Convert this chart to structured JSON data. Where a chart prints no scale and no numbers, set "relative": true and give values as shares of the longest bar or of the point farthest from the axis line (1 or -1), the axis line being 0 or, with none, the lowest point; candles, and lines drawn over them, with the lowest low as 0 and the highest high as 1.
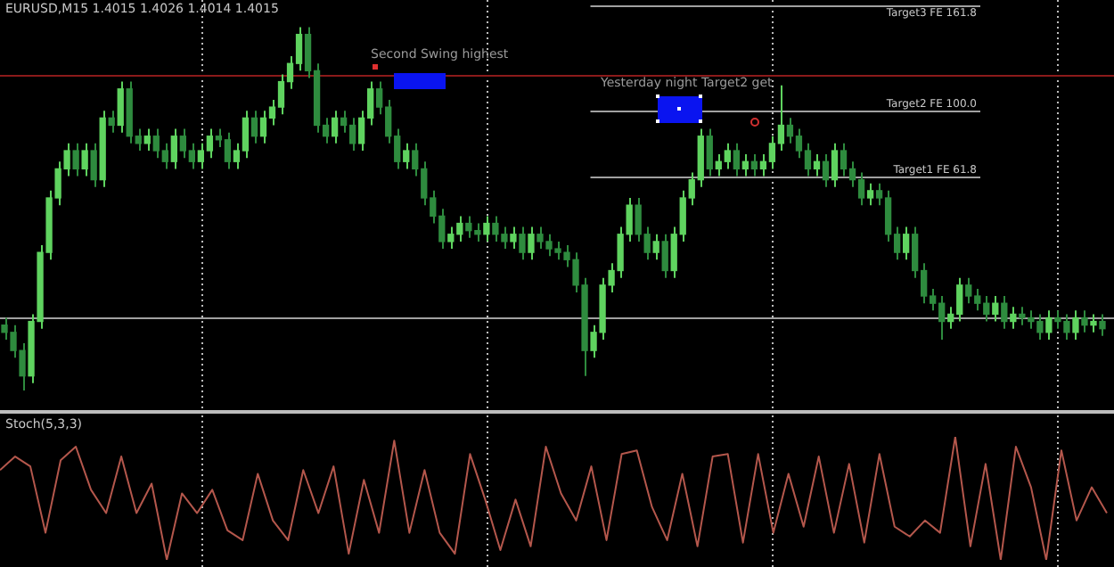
{
  "chart_data": [
    {
      "type": "candlestick",
      "title": "EURUSD,M15 1.4015 1.4026 1.4014 1.4015",
      "relative": true,
      "tick_labels": false,
      "annotations": [
        "Second Swing highest",
        "Yesterday night Target2 get"
      ],
      "colors": [
        "#2e8b3e",
        "#2e8b3e",
        "#2e8b3e",
        "#5fd35f",
        "#5fd35f",
        "#5fd35f",
        "#5fd35f",
        "#5fd35f",
        "#2e8b3e",
        "#5fd35f",
        "#2e8b3e",
        "#5fd35f",
        "#2e8b3e",
        "#5fd35f",
        "#2e8b3e",
        "#2e8b3e",
        "#5fd35f",
        "#2e8b3e",
        "#2e8b3e",
        "#5fd35f",
        "#2e8b3e",
        "#2e8b3e",
        "#5fd35f",
        "#5fd35f",
        "#2e8b3e",
        "#2e8b3e",
        "#5fd35f",
        "#5fd35f",
        "#2e8b3e",
        "#5fd35f",
        "#5fd35f",
        "#5fd35f",
        "#5fd35f",
        "#5fd35f",
        "#2e8b3e",
        "#2e8b3e",
        "#2e8b3e",
        "#5fd35f",
        "#2e8b3e",
        "#2e8b3e",
        "#5fd35f",
        "#5fd35f",
        "#2e8b3e",
        "#2e8b3e",
        "#2e8b3e",
        "#5fd35f",
        "#2e8b3e",
        "#2e8b3e",
        "#2e8b3e",
        "#2e8b3e",
        "#5fd35f",
        "#5fd35f",
        "#2e8b3e",
        "#2e8b3e",
        "#5fd35f",
        "#2e8b3e",
        "#2e8b3e",
        "#5fd35f",
        "#2e8b3e",
        "#5fd35f",
        "#2e8b3e",
        "#2e8b3e",
        "#2e8b3e",
        "#2e8b3e",
        "#2e8b3e",
        "#2e8b3e",
        "#5fd35f",
        "#5fd35f",
        "#5fd35f",
        "#5fd35f",
        "#5fd35f",
        "#2e8b3e",
        "#2e8b3e",
        "#5fd35f",
        "#2e8b3e",
        "#5fd35f",
        "#5fd35f",
        "#5fd35f",
        "#5fd35f",
        "#2e8b3e",
        "#5fd35f",
        "#5fd35f",
        "#2e8b3e",
        "#5fd35f",
        "#2e8b3e",
        "#5fd35f",
        "#5fd35f",
        "#5fd35f",
        "#2e8b3e",
        "#2e8b3e",
        "#2e8b3e",
        "#5fd35f",
        "#2e8b3e",
        "#5fd35f",
        "#2e8b3e",
        "#2e8b3e",
        "#2e8b3e",
        "#5fd35f",
        "#2e8b3e",
        "#2e8b3e",
        "#2e8b3e",
        "#5fd35f",
        "#2e8b3e",
        "#2e8b3e",
        "#2e8b3e",
        "#2e8b3e",
        "#5fd35f",
        "#5fd35f",
        "#2e8b3e",
        "#2e8b3e",
        "#2e8b3e",
        "#5fd35f",
        "#2e8b3e",
        "#5fd35f",
        "#2e8b3e",
        "#2e8b3e",
        "#2e8b3e",
        "#5fd35f",
        "#2e8b3e",
        "#2e8b3e",
        "#5fd35f",
        "#2e8b3e",
        "#5fd35f",
        "#2e8b3e"
      ],
      "ref_lines": [
        {
          "axis": "y",
          "value": 1.06,
          "label": "Target3 FE 161.8",
          "color": "#a0a0a0"
        },
        {
          "axis": "y",
          "value": 0.87,
          "color": "#8b1a1a"
        },
        {
          "axis": "y",
          "value": 0.77,
          "label": "Target2 FE 100.0",
          "color": "#a0a0a0"
        },
        {
          "axis": "y",
          "value": 0.59,
          "label": "Target1 FE 61.8",
          "color": "#a0a0a0"
        },
        {
          "axis": "y",
          "value": 0.2,
          "color": "#a0a0a0"
        }
      ],
      "categories": [
        null,
        null,
        null,
        null,
        null,
        null,
        null,
        null,
        null,
        null,
        null,
        null,
        null,
        null,
        null,
        null,
        null,
        null,
        null,
        null,
        null,
        null,
        null,
        null,
        null,
        null,
        null,
        null,
        null,
        null,
        null,
        null,
        null,
        null,
        null,
        null,
        null,
        null,
        null,
        null,
        null,
        null,
        null,
        null,
        null,
        null,
        null,
        null,
        null,
        null,
        null,
        null,
        null,
        null,
        null,
        null,
        null,
        null,
        null,
        null,
        null,
        null,
        null,
        null,
        null,
        null,
        null,
        null,
        null,
        null,
        null,
        null,
        null,
        null,
        null,
        null,
        null,
        null,
        null,
        null,
        null,
        null,
        null,
        null,
        null,
        null,
        null,
        null,
        null,
        null,
        null,
        null,
        null,
        null,
        null,
        null,
        null,
        null,
        null,
        null,
        null,
        null,
        null,
        null,
        null,
        null,
        null,
        null,
        null,
        null,
        null,
        null,
        null,
        null,
        null,
        null,
        null,
        null,
        null,
        null,
        null,
        null,
        null,
        null
      ],
      "ohlc": [
        [
          0.18,
          0.2,
          0.14,
          0.16
        ],
        [
          0.16,
          0.18,
          0.09,
          0.11
        ],
        [
          0.11,
          0.13,
          0,
          0.04
        ],
        [
          0.04,
          0.21,
          0.02,
          0.19
        ],
        [
          0.19,
          0.4,
          0.17,
          0.38
        ],
        [
          0.38,
          0.55,
          0.36,
          0.53
        ],
        [
          0.53,
          0.63,
          0.51,
          0.61
        ],
        [
          0.61,
          0.68,
          0.59,
          0.66
        ],
        [
          0.66,
          0.68,
          0.59,
          0.61
        ],
        [
          0.61,
          0.68,
          0.59,
          0.66
        ],
        [
          0.66,
          0.68,
          0.56,
          0.58
        ],
        [
          0.58,
          0.77,
          0.56,
          0.75
        ],
        [
          0.75,
          0.77,
          0.71,
          0.73
        ],
        [
          0.73,
          0.85,
          0.71,
          0.83
        ],
        [
          0.83,
          0.85,
          0.68,
          0.7
        ],
        [
          0.7,
          0.72,
          0.66,
          0.68
        ],
        [
          0.68,
          0.72,
          0.66,
          0.7
        ],
        [
          0.7,
          0.72,
          0.64,
          0.66
        ],
        [
          0.66,
          0.68,
          0.61,
          0.63
        ],
        [
          0.63,
          0.72,
          0.61,
          0.7
        ],
        [
          0.7,
          0.72,
          0.64,
          0.66
        ],
        [
          0.66,
          0.68,
          0.61,
          0.63
        ],
        [
          0.63,
          0.68,
          0.61,
          0.66
        ],
        [
          0.66,
          0.72,
          0.64,
          0.7
        ],
        [
          0.7,
          0.72,
          0.67,
          0.69
        ],
        [
          0.69,
          0.71,
          0.61,
          0.63
        ],
        [
          0.63,
          0.68,
          0.61,
          0.66
        ],
        [
          0.66,
          0.77,
          0.64,
          0.75
        ],
        [
          0.75,
          0.77,
          0.68,
          0.7
        ],
        [
          0.7,
          0.77,
          0.68,
          0.75
        ],
        [
          0.75,
          0.8,
          0.73,
          0.78
        ],
        [
          0.78,
          0.87,
          0.76,
          0.85
        ],
        [
          0.85,
          0.92,
          0.83,
          0.9
        ],
        [
          0.9,
          1,
          0.88,
          0.98
        ],
        [
          0.98,
          1,
          0.86,
          0.88
        ],
        [
          0.88,
          0.9,
          0.71,
          0.73
        ],
        [
          0.73,
          0.75,
          0.68,
          0.7
        ],
        [
          0.7,
          0.77,
          0.68,
          0.75
        ],
        [
          0.75,
          0.77,
          0.71,
          0.73
        ],
        [
          0.73,
          0.75,
          0.66,
          0.68
        ],
        [
          0.68,
          0.77,
          0.66,
          0.75
        ],
        [
          0.75,
          0.85,
          0.73,
          0.83
        ],
        [
          0.83,
          0.85,
          0.76,
          0.78
        ],
        [
          0.78,
          0.8,
          0.68,
          0.7
        ],
        [
          0.7,
          0.72,
          0.61,
          0.63
        ],
        [
          0.63,
          0.68,
          0.61,
          0.66
        ],
        [
          0.66,
          0.68,
          0.59,
          0.61
        ],
        [
          0.61,
          0.63,
          0.51,
          0.53
        ],
        [
          0.53,
          0.55,
          0.46,
          0.48
        ],
        [
          0.48,
          0.5,
          0.39,
          0.41
        ],
        [
          0.41,
          0.45,
          0.39,
          0.43
        ],
        [
          0.43,
          0.48,
          0.41,
          0.46
        ],
        [
          0.46,
          0.48,
          0.42,
          0.44
        ],
        [
          0.44,
          0.46,
          0.41,
          0.43
        ],
        [
          0.43,
          0.48,
          0.41,
          0.46
        ],
        [
          0.46,
          0.48,
          0.41,
          0.43
        ],
        [
          0.43,
          0.45,
          0.39,
          0.41
        ],
        [
          0.41,
          0.45,
          0.39,
          0.43
        ],
        [
          0.43,
          0.45,
          0.36,
          0.38
        ],
        [
          0.38,
          0.45,
          0.36,
          0.43
        ],
        [
          0.43,
          0.45,
          0.39,
          0.41
        ],
        [
          0.41,
          0.43,
          0.37,
          0.39
        ],
        [
          0.39,
          0.41,
          0.36,
          0.38
        ],
        [
          0.38,
          0.4,
          0.34,
          0.36
        ],
        [
          0.36,
          0.38,
          0.27,
          0.29
        ],
        [
          0.29,
          0.31,
          0.04,
          0.11
        ],
        [
          0.11,
          0.18,
          0.09,
          0.16
        ],
        [
          0.16,
          0.31,
          0.14,
          0.29
        ],
        [
          0.29,
          0.35,
          0.27,
          0.33
        ],
        [
          0.33,
          0.45,
          0.31,
          0.43
        ],
        [
          0.43,
          0.53,
          0.41,
          0.51
        ],
        [
          0.51,
          0.53,
          0.41,
          0.43
        ],
        [
          0.43,
          0.45,
          0.36,
          0.38
        ],
        [
          0.38,
          0.43,
          0.36,
          0.41
        ],
        [
          0.41,
          0.43,
          0.31,
          0.33
        ],
        [
          0.33,
          0.45,
          0.31,
          0.43
        ],
        [
          0.43,
          0.55,
          0.41,
          0.53
        ],
        [
          0.53,
          0.6,
          0.51,
          0.58
        ],
        [
          0.58,
          0.72,
          0.56,
          0.7
        ],
        [
          0.7,
          0.72,
          0.59,
          0.61
        ],
        [
          0.61,
          0.65,
          0.59,
          0.63
        ],
        [
          0.63,
          0.68,
          0.61,
          0.66
        ],
        [
          0.66,
          0.68,
          0.59,
          0.61
        ],
        [
          0.61,
          0.65,
          0.59,
          0.63
        ],
        [
          0.63,
          0.65,
          0.59,
          0.61
        ],
        [
          0.61,
          0.65,
          0.59,
          0.63
        ],
        [
          0.63,
          0.7,
          0.61,
          0.68
        ],
        [
          0.68,
          0.84,
          0.66,
          0.73
        ],
        [
          0.73,
          0.75,
          0.68,
          0.7
        ],
        [
          0.7,
          0.72,
          0.64,
          0.66
        ],
        [
          0.66,
          0.68,
          0.59,
          0.61
        ],
        [
          0.61,
          0.65,
          0.59,
          0.63
        ],
        [
          0.63,
          0.65,
          0.56,
          0.58
        ],
        [
          0.58,
          0.68,
          0.56,
          0.66
        ],
        [
          0.66,
          0.68,
          0.59,
          0.61
        ],
        [
          0.61,
          0.63,
          0.56,
          0.58
        ],
        [
          0.58,
          0.6,
          0.51,
          0.53
        ],
        [
          0.53,
          0.57,
          0.51,
          0.55
        ],
        [
          0.55,
          0.57,
          0.51,
          0.53
        ],
        [
          0.53,
          0.55,
          0.41,
          0.43
        ],
        [
          0.43,
          0.45,
          0.36,
          0.38
        ],
        [
          0.38,
          0.45,
          0.36,
          0.43
        ],
        [
          0.43,
          0.45,
          0.31,
          0.33
        ],
        [
          0.33,
          0.35,
          0.24,
          0.26
        ],
        [
          0.26,
          0.28,
          0.22,
          0.24
        ],
        [
          0.24,
          0.26,
          0.14,
          0.19
        ],
        [
          0.19,
          0.23,
          0.17,
          0.21
        ],
        [
          0.21,
          0.31,
          0.19,
          0.29
        ],
        [
          0.29,
          0.31,
          0.24,
          0.26
        ],
        [
          0.26,
          0.28,
          0.22,
          0.24
        ],
        [
          0.24,
          0.26,
          0.19,
          0.21
        ],
        [
          0.21,
          0.26,
          0.19,
          0.24
        ],
        [
          0.24,
          0.26,
          0.17,
          0.19
        ],
        [
          0.19,
          0.23,
          0.17,
          0.21
        ],
        [
          0.21,
          0.23,
          0.18,
          0.2
        ],
        [
          0.2,
          0.22,
          0.17,
          0.19
        ],
        [
          0.19,
          0.21,
          0.14,
          0.16
        ],
        [
          0.16,
          0.22,
          0.14,
          0.2
        ],
        [
          0.2,
          0.22,
          0.17,
          0.19
        ],
        [
          0.19,
          0.21,
          0.14,
          0.16
        ],
        [
          0.16,
          0.22,
          0.14,
          0.2
        ],
        [
          0.2,
          0.22,
          0.16,
          0.18
        ],
        [
          0.18,
          0.21,
          0.16,
          0.19
        ],
        [
          0.19,
          0.21,
          0.15,
          0.17
        ]
      ]
    },
    {
      "type": "line",
      "title": "Stoch(5,3,3)",
      "relative": true,
      "tick_labels": false,
      "categories": [
        null,
        null,
        null,
        null,
        null,
        null,
        null,
        null,
        null,
        null,
        null,
        null,
        null,
        null,
        null,
        null,
        null,
        null,
        null,
        null,
        null,
        null,
        null,
        null,
        null,
        null,
        null,
        null,
        null,
        null,
        null,
        null,
        null,
        null,
        null,
        null,
        null,
        null,
        null,
        null,
        null,
        null,
        null,
        null,
        null,
        null,
        null,
        null,
        null,
        null,
        null,
        null,
        null,
        null,
        null,
        null,
        null,
        null,
        null,
        null,
        null,
        null,
        null,
        null,
        null,
        null,
        null,
        null,
        null,
        null,
        null,
        null,
        null,
        null
      ],
      "series": [
        {
          "color": "#b4574c",
          "values": [
            0.73,
            0.84,
            0.76,
            0.22,
            0.81,
            0.92,
            0.57,
            0.38,
            0.84,
            0.38,
            0.62,
            0,
            0.54,
            0.38,
            0.57,
            0.24,
            0.16,
            0.7,
            0.32,
            0.16,
            0.73,
            0.38,
            0.76,
            0.05,
            0.65,
            0.22,
            0.97,
            0.22,
            0.73,
            0.22,
            0.05,
            0.86,
            0.49,
            0.08,
            0.49,
            0.11,
            0.92,
            0.54,
            0.32,
            0.76,
            0.16,
            0.86,
            0.89,
            0.43,
            0.16,
            0.7,
            0.11,
            0.84,
            0.86,
            0.14,
            0.86,
            0.22,
            0.7,
            0.27,
            0.84,
            0.22,
            0.78,
            0.14,
            0.86,
            0.27,
            0.19,
            0.32,
            0.22,
            1,
            0.11,
            0.78,
            0,
            0.92,
            0.59,
            0,
            0.89,
            0.32,
            0.59,
            0.38
          ]
        }
      ]
    }
  ]
}
